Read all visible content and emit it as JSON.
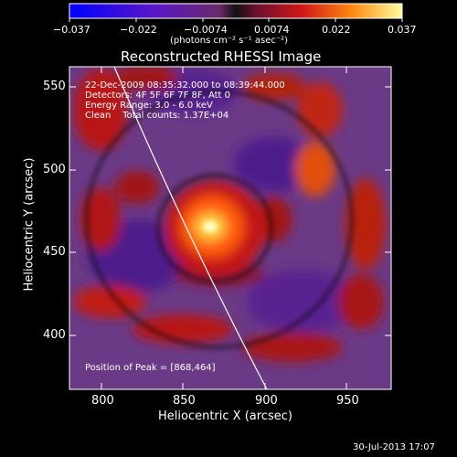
{
  "colorbar": {
    "tick_labels": [
      "−0.037",
      "−0.022",
      "−0.0074",
      "0.0074",
      "0.022",
      "0.037"
    ],
    "units": "(photons cm⁻² s⁻¹ asec⁻²)"
  },
  "image": {
    "title": "Reconstructed RHESSI Image",
    "info_lines": [
      "22-Dec-2009 08:35:32.000 to 08:39:44.000",
      "Detectors: 4F 5F 6F 7F 8F, Att 0",
      "Energy Range: 3.0 - 6.0 keV",
      "Clean    Total counts: 1.37E+04"
    ],
    "peak_text": "Position of Peak = [868,464]",
    "x_axis_label": "Heliocentric X (arcsec)",
    "y_axis_label": "Heliocentric Y (arcsec)",
    "x_ticks": [
      "800",
      "850",
      "900",
      "950"
    ],
    "y_ticks": [
      "400",
      "450",
      "500",
      "550"
    ],
    "footer_timestamp": "30-Jul-2013 17:07"
  }
}
